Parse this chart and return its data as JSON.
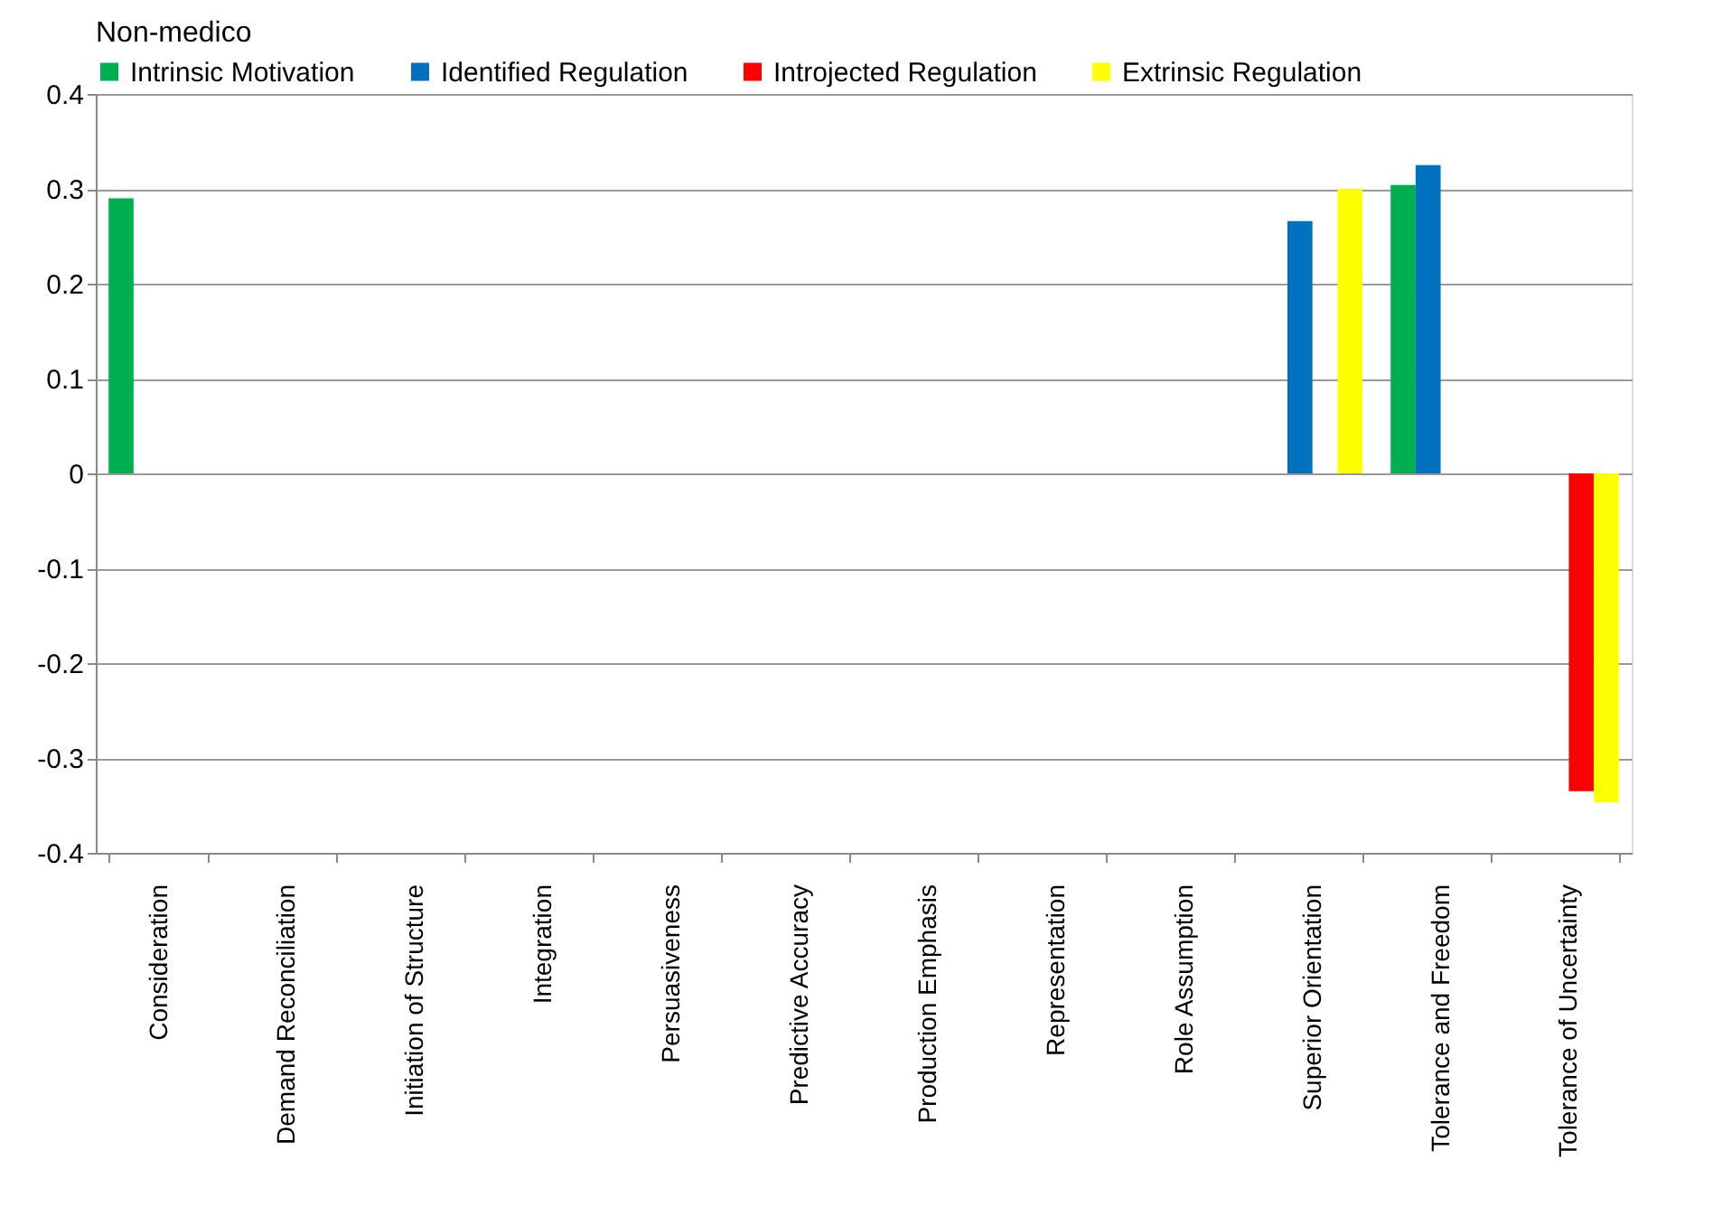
{
  "chart_data": {
    "type": "bar",
    "title": "Non-medico",
    "categories": [
      "Consideration",
      "Demand Reconciliation",
      "Initiation of Structure",
      "Integration",
      "Persuasiveness",
      "Predictive Accuracy",
      "Production Emphasis",
      "Representation",
      "Role Assumption",
      "Superior Orientation",
      "Tolerance and Freedom",
      "Tolerance of Uncertainty"
    ],
    "series": [
      {
        "name": "Intrinsic Motivation",
        "color": "#00b050",
        "values": [
          0.29,
          null,
          null,
          null,
          null,
          null,
          null,
          null,
          null,
          null,
          0.304,
          null
        ]
      },
      {
        "name": "Identified Regulation",
        "color": "#0070c0",
        "values": [
          null,
          null,
          null,
          null,
          null,
          null,
          null,
          null,
          null,
          0.266,
          0.325,
          null
        ]
      },
      {
        "name": "Introjected Regulation",
        "color": "#ff0000",
        "values": [
          null,
          null,
          null,
          null,
          null,
          null,
          null,
          null,
          null,
          null,
          null,
          -0.335
        ]
      },
      {
        "name": "Extrinsic Regulation",
        "color": "#ffff00",
        "values": [
          null,
          null,
          null,
          null,
          null,
          null,
          null,
          null,
          null,
          0.3,
          null,
          -0.347
        ]
      }
    ],
    "ylim": [
      -0.4,
      0.4
    ],
    "yticks": [
      -0.4,
      -0.3,
      -0.2,
      -0.1,
      0,
      0.1,
      0.2,
      0.3,
      0.4
    ],
    "grid": "y",
    "legend": "top"
  }
}
